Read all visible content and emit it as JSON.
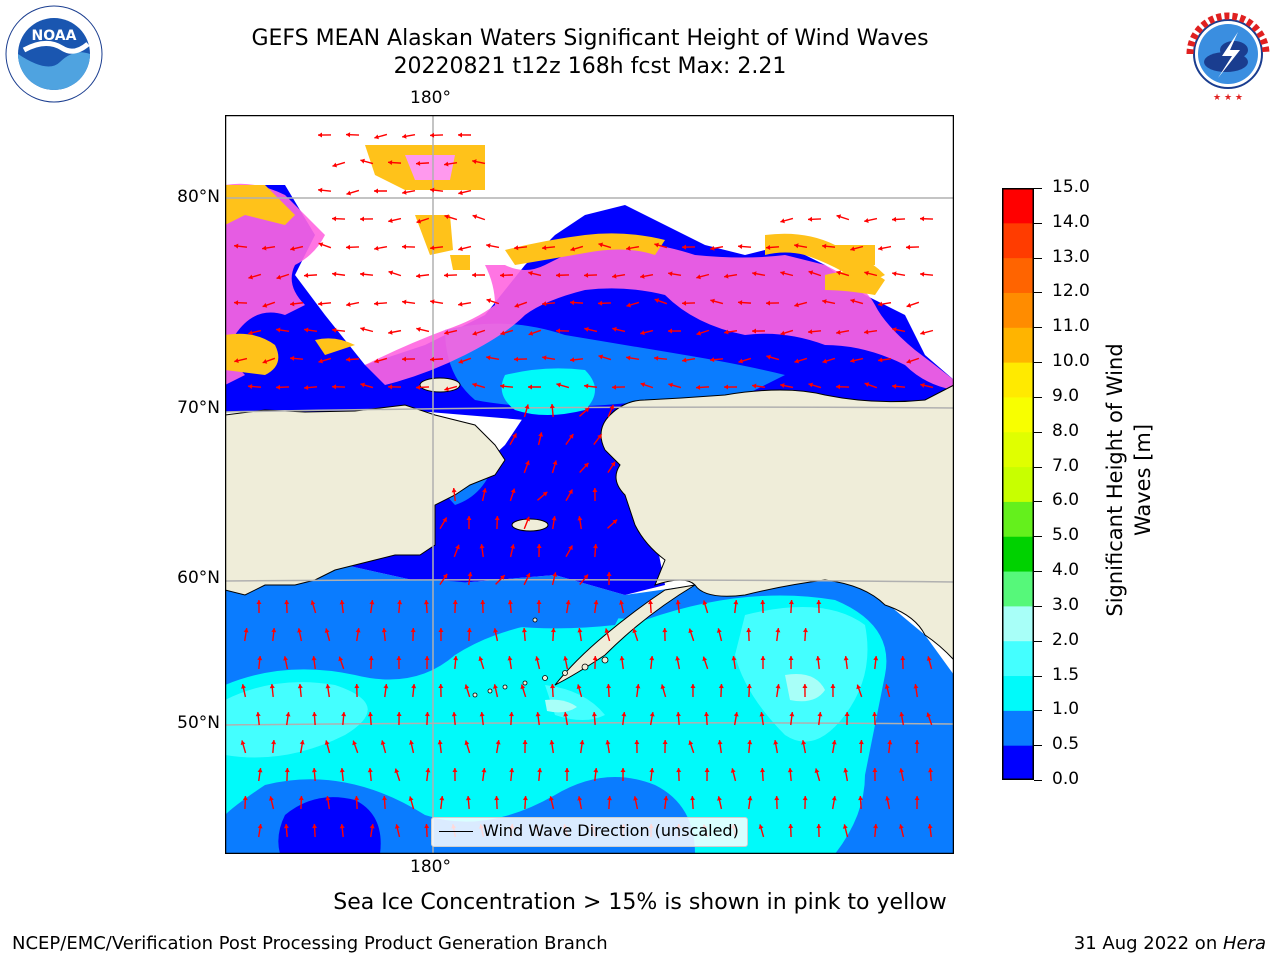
{
  "header": {
    "title_line1": "GEFS MEAN Alaskan Waters Significant Height of Wind Waves",
    "title_line2": "20220821 t12z 168h fcst   Max: 2.21"
  },
  "logos": {
    "left": {
      "icon": "noaa-logo",
      "text": "NOAA",
      "ring_text": "NATIONAL OCEANIC AND ATMOSPHERIC ADMINISTRATION · U.S. DEPARTMENT OF COMMERCE"
    },
    "right": {
      "icon": "nws-logo",
      "ring_text": "NATIONAL WEATHER SERVICE"
    }
  },
  "map": {
    "lon_label_top": "180°",
    "lon_label_bottom": "180°",
    "lat_labels": [
      "80°N",
      "70°N",
      "60°N",
      "50°N"
    ],
    "legend_label": "Wind Wave Direction (unscaled)",
    "colors": {
      "land": "#efedd9",
      "ice_edge": "#ffc21a",
      "ice_pink": "#ff66e0",
      "arrow": "#ff0000"
    }
  },
  "colorbar": {
    "title": "Significant Height of Wind Waves [m]",
    "title_line1": "Significant Height of Wind",
    "title_line2": "Waves [m]",
    "ticks": [
      "15.0",
      "14.0",
      "13.0",
      "12.0",
      "11.0",
      "10.0",
      "9.0",
      "8.0",
      "7.0",
      "6.0",
      "5.0",
      "4.0",
      "3.0",
      "2.0",
      "1.5",
      "1.0",
      "0.5",
      "0.0"
    ],
    "bands": [
      {
        "from": 0.0,
        "to": 0.5,
        "color": "#0000ff"
      },
      {
        "from": 0.5,
        "to": 1.0,
        "color": "#0a7cff"
      },
      {
        "from": 1.0,
        "to": 1.5,
        "color": "#00fafa"
      },
      {
        "from": 1.5,
        "to": 2.0,
        "color": "#44ffff"
      },
      {
        "from": 2.0,
        "to": 3.0,
        "color": "#a8fff8"
      },
      {
        "from": 3.0,
        "to": 4.0,
        "color": "#56f87a"
      },
      {
        "from": 4.0,
        "to": 5.0,
        "color": "#00d200"
      },
      {
        "from": 5.0,
        "to": 6.0,
        "color": "#64f01c"
      },
      {
        "from": 6.0,
        "to": 7.0,
        "color": "#c8ff00"
      },
      {
        "from": 7.0,
        "to": 8.0,
        "color": "#e0ff00"
      },
      {
        "from": 8.0,
        "to": 9.0,
        "color": "#f8ff00"
      },
      {
        "from": 9.0,
        "to": 10.0,
        "color": "#ffea00"
      },
      {
        "from": 10.0,
        "to": 11.0,
        "color": "#ffb400"
      },
      {
        "from": 11.0,
        "to": 12.0,
        "color": "#ff8c00"
      },
      {
        "from": 12.0,
        "to": 13.0,
        "color": "#ff6400"
      },
      {
        "from": 13.0,
        "to": 14.0,
        "color": "#ff3c00"
      },
      {
        "from": 14.0,
        "to": 15.0,
        "color": "#ff0000"
      }
    ]
  },
  "footer": {
    "note": "Sea Ice Concentration > 15% is shown in pink to yellow",
    "left": "NCEP/EMC/Verification Post Processing Product Generation Branch",
    "right_date": "31 Aug 2022 on ",
    "right_host": "Hera"
  }
}
